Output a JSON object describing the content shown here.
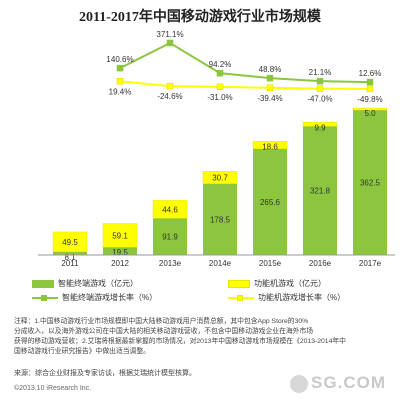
{
  "title": "2011-2017年中国移动游戏行业市场规模",
  "chart_data": {
    "type": "bar",
    "categories": [
      "2011",
      "2012",
      "2013e",
      "2014e",
      "2015e",
      "2016e",
      "2017e"
    ],
    "series": [
      {
        "name": "智能终端游戏（亿元）",
        "values": [
          8.1,
          19.5,
          91.9,
          178.5,
          265.6,
          321.8,
          362.5
        ],
        "color": "#8cc63f"
      },
      {
        "name": "功能机游戏（亿元）",
        "values": [
          49.5,
          59.1,
          44.6,
          30.7,
          18.6,
          9.9,
          5.0
        ],
        "color": "#ffff00"
      }
    ],
    "growth": [
      {
        "name": "智能终端游戏增长率（%）",
        "values": [
          null,
          140.6,
          371.1,
          94.2,
          48.8,
          21.1,
          12.6
        ],
        "labels": [
          "",
          "140.6%",
          "371.1%",
          "94.2%",
          "48.8%",
          "21.1%",
          "12.6%"
        ],
        "color": "#8cc63f"
      },
      {
        "name": "功能机游戏增长率（%）",
        "values": [
          null,
          19.4,
          -24.6,
          -31.0,
          -39.4,
          -47.0,
          -49.8
        ],
        "labels": [
          "",
          "19.4%",
          "-24.6%",
          "-31.0%",
          "-39.4%",
          "-47.0%",
          "-49.8%"
        ],
        "color": "#ffff00"
      }
    ],
    "stacked": true,
    "legend_position": "bottom"
  },
  "legend": {
    "smart_bar": "智能终端游戏（亿元）",
    "feature_bar": "功能机游戏（亿元）",
    "smart_line": "智能终端游戏增长率（%）",
    "feature_line": "功能机游戏增长率（%）"
  },
  "notes": [
    "注释：1.中国移动游戏行业市场规模即中国大陆移动游戏用户消费总额，其中包含App Store的30%",
    "分成收入，以及海外游戏公司在中国大陆的相关移动游戏营收，不包含中国移动游戏企业在海外市场",
    "获得的移动游戏营收；2.艾瑞将根据最新掌握的市场情况，对2013年中国移动游戏市场规模在《2013-2014年中",
    "国移动游戏行业研究报告》中做出适当调整。"
  ],
  "source": "来源：综合企业财报及专家访谈，根据艾瑞统计模型核算。",
  "copyright": "©2013.10 iResearch Inc.",
  "watermark": "SG.COM"
}
